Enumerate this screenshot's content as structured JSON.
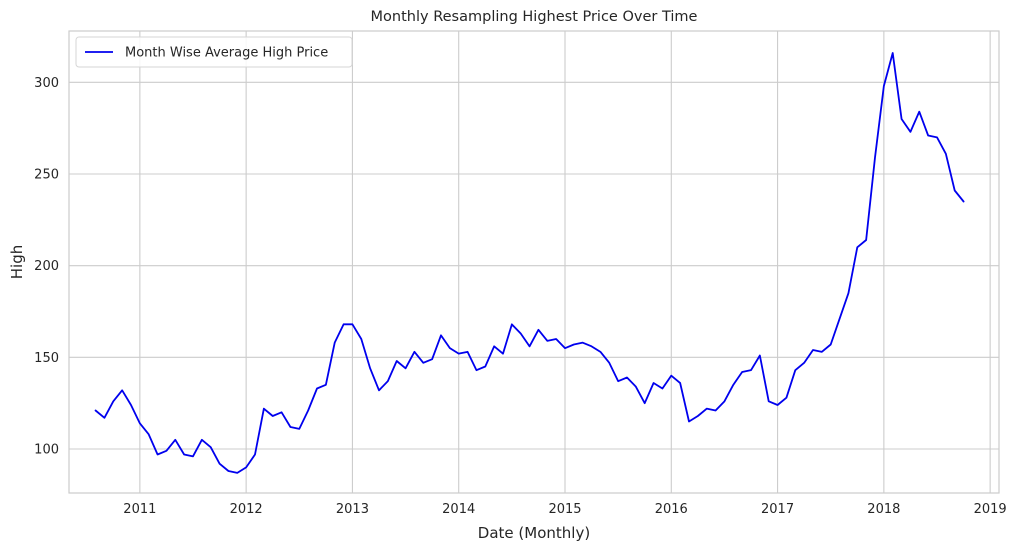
{
  "chart_data": {
    "type": "line",
    "title": "Monthly Resampling Highest Price Over Time",
    "xlabel": "Date (Monthly)",
    "ylabel": "High",
    "x_ticks": [
      "2011",
      "2012",
      "2013",
      "2014",
      "2015",
      "2016",
      "2017",
      "2018",
      "2019"
    ],
    "y_ticks": [
      100,
      150,
      200,
      250,
      300
    ],
    "xlim": [
      "2010-05",
      "2019-02"
    ],
    "ylim": [
      76,
      328
    ],
    "grid": true,
    "legend_position": "top-left",
    "series": [
      {
        "name": "Month Wise Average High Price",
        "color": "#0000ee",
        "x": [
          "2010-08",
          "2010-09",
          "2010-10",
          "2010-11",
          "2010-12",
          "2011-01",
          "2011-02",
          "2011-03",
          "2011-04",
          "2011-05",
          "2011-06",
          "2011-07",
          "2011-08",
          "2011-09",
          "2011-10",
          "2011-11",
          "2011-12",
          "2012-01",
          "2012-02",
          "2012-03",
          "2012-04",
          "2012-05",
          "2012-06",
          "2012-07",
          "2012-08",
          "2012-09",
          "2012-10",
          "2012-11",
          "2012-12",
          "2013-01",
          "2013-02",
          "2013-03",
          "2013-04",
          "2013-05",
          "2013-06",
          "2013-07",
          "2013-08",
          "2013-09",
          "2013-10",
          "2013-11",
          "2013-12",
          "2014-01",
          "2014-02",
          "2014-03",
          "2014-04",
          "2014-05",
          "2014-06",
          "2014-07",
          "2014-08",
          "2014-09",
          "2014-10",
          "2014-11",
          "2014-12",
          "2015-01",
          "2015-02",
          "2015-03",
          "2015-04",
          "2015-05",
          "2015-06",
          "2015-07",
          "2015-08",
          "2015-09",
          "2015-10",
          "2015-11",
          "2015-12",
          "2016-01",
          "2016-02",
          "2016-03",
          "2016-04",
          "2016-05",
          "2016-06",
          "2016-07",
          "2016-08",
          "2016-09",
          "2016-10",
          "2016-11",
          "2016-12",
          "2017-01",
          "2017-02",
          "2017-03",
          "2017-04",
          "2017-05",
          "2017-06",
          "2017-07",
          "2017-08",
          "2017-09",
          "2017-10",
          "2017-11",
          "2017-12",
          "2018-01",
          "2018-02",
          "2018-03",
          "2018-04",
          "2018-05",
          "2018-06",
          "2018-07",
          "2018-08",
          "2018-09",
          "2018-10"
        ],
        "y": [
          121,
          117,
          126,
          132,
          124,
          114,
          108,
          97,
          99,
          105,
          97,
          96,
          105,
          101,
          92,
          88,
          87,
          90,
          97,
          122,
          118,
          120,
          112,
          111,
          121,
          133,
          135,
          158,
          168,
          168,
          160,
          144,
          132,
          137,
          148,
          144,
          153,
          147,
          149,
          162,
          155,
          152,
          153,
          143,
          145,
          156,
          152,
          168,
          163,
          156,
          165,
          159,
          160,
          155,
          157,
          158,
          156,
          153,
          147,
          137,
          139,
          134,
          125,
          136,
          133,
          140,
          136,
          115,
          118,
          122,
          121,
          126,
          135,
          142,
          143,
          151,
          126,
          124,
          128,
          143,
          147,
          154,
          153,
          157,
          171,
          185,
          210,
          214,
          259,
          298,
          316,
          280,
          273,
          284,
          271,
          270,
          261,
          241,
          235
        ]
      }
    ]
  }
}
